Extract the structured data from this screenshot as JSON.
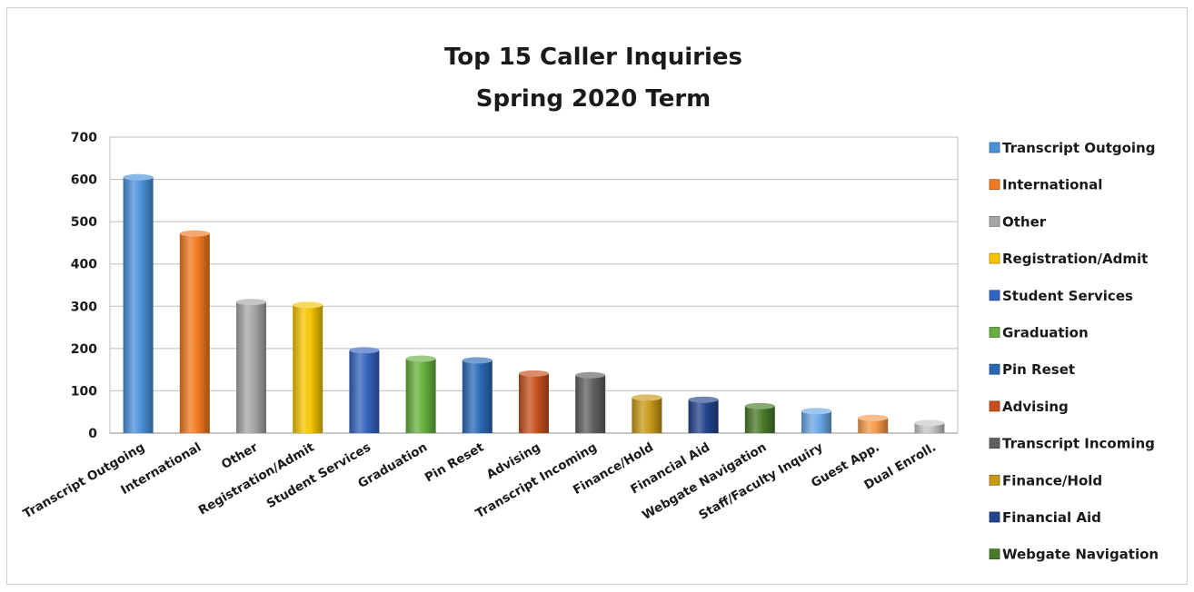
{
  "chart_data": {
    "type": "bar",
    "title": "Top 15 Caller Inquiries",
    "subtitle": "Spring 2020 Term",
    "xlabel": "",
    "ylabel": "",
    "ylim": [
      0,
      700
    ],
    "yticks": [
      0,
      100,
      200,
      300,
      400,
      500,
      600,
      700
    ],
    "grid": true,
    "legend_position": "right",
    "categories": [
      "Transcript Outgoing",
      "International",
      "Other",
      "Registration/Admit",
      "Student Services",
      "Graduation",
      "Pin Reset",
      "Advising",
      "Transcript Incoming",
      "Finance/Hold",
      "Financial Aid",
      "Webgate Navigation",
      "Staff/Faculty Inquiry",
      "Guest App.",
      "Dual Enroll."
    ],
    "values": [
      605,
      472,
      310,
      303,
      196,
      176,
      172,
      141,
      137,
      84,
      79,
      64,
      52,
      36,
      24
    ],
    "colors": [
      "#4a90d9",
      "#f07a20",
      "#a6a6a6",
      "#f5c400",
      "#3464c0",
      "#66b040",
      "#2a6ab5",
      "#c8501c",
      "#606060",
      "#c89a18",
      "#24448c",
      "#4a7a28",
      "#6aa8e6",
      "#f59a4a",
      "#c4c4c4"
    ],
    "legend": [
      "Transcript Outgoing",
      "International",
      "Other",
      "Registration/Admit",
      "Student Services",
      "Graduation",
      "Pin Reset",
      "Advising",
      "Transcript Incoming",
      "Finance/Hold",
      "Financial Aid",
      "Webgate Navigation"
    ]
  }
}
